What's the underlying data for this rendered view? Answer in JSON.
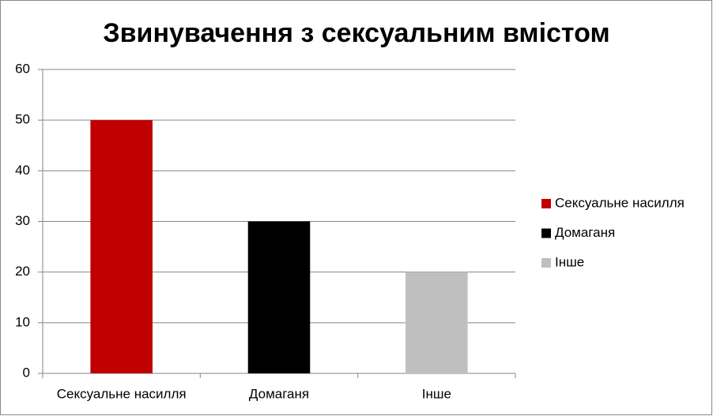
{
  "chart_data": {
    "type": "bar",
    "title": "Звинувачення з сексуальним вмістом",
    "categories": [
      "Сексуальне насилля",
      "Домаганя",
      "Інше"
    ],
    "values": [
      50,
      30,
      20
    ],
    "colors": [
      "#c00000",
      "#000000",
      "#bfbfbf"
    ],
    "ylim": [
      0,
      60
    ],
    "yticks": [
      0,
      10,
      20,
      30,
      40,
      50,
      60
    ],
    "grid": true,
    "legend": "right"
  }
}
